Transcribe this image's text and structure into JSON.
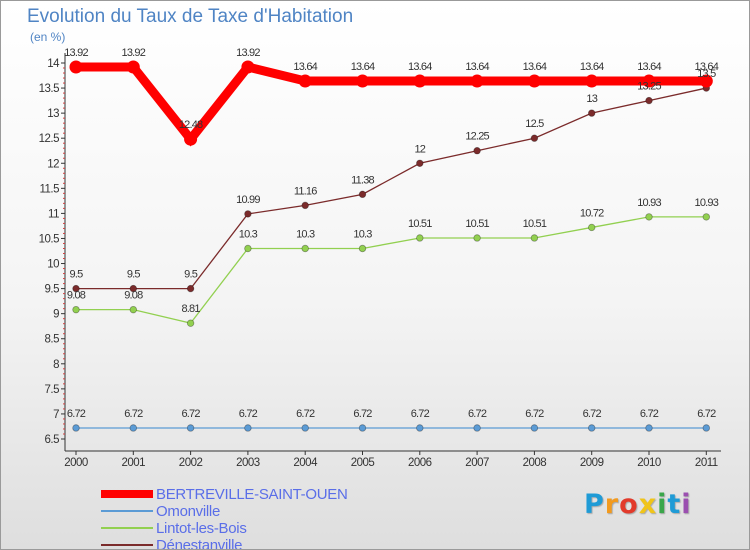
{
  "title": "Evolution du Taux de Taxe d'Habitation",
  "unit_label": "(en %)",
  "logo": {
    "text": "Proxiti",
    "colors": [
      "#1f9bd6",
      "#f29a1e",
      "#e23a2b",
      "#f0c419",
      "#3aa64a",
      "#1f9bd6",
      "#9b4fb0"
    ]
  },
  "chart_data": {
    "type": "line",
    "title": "Evolution du Taux de Taxe d'Habitation",
    "ylabel": "(en %)",
    "xlabel": "",
    "ylim": [
      6.5,
      14
    ],
    "yticks": [
      6.5,
      7,
      7.5,
      8,
      8.5,
      9,
      9.5,
      10,
      10.5,
      11,
      11.5,
      12,
      12.5,
      13,
      13.5,
      14
    ],
    "ytick_labels": [
      "6.5",
      "7",
      "7.5",
      "8",
      "8.5",
      "9",
      "9.5",
      "10",
      "10.5",
      "11",
      "11.5",
      "12",
      "12.5",
      "13",
      "13.5",
      "14"
    ],
    "grid": false,
    "legend_position": "bottom-left",
    "x": [
      "2000",
      "2001",
      "2002",
      "2003",
      "2004",
      "2005",
      "2006",
      "2007",
      "2008",
      "2009",
      "2010",
      "2011"
    ],
    "series": [
      {
        "name": "BERTREVILLE-SAINT-OUEN",
        "color": "#ff0000",
        "emphasis": "thick",
        "values": [
          13.92,
          13.92,
          12.48,
          13.92,
          13.64,
          13.64,
          13.64,
          13.64,
          13.64,
          13.64,
          13.64,
          13.64
        ],
        "labels": [
          "13.92",
          "13.92",
          "12.48",
          "13.92",
          "13.64",
          "13.64",
          "13.64",
          "13.64",
          "13.64",
          "13.64",
          "13.64",
          "13.64"
        ]
      },
      {
        "name": "Omonville",
        "color": "#5b9bd5",
        "emphasis": "normal",
        "values": [
          6.72,
          6.72,
          6.72,
          6.72,
          6.72,
          6.72,
          6.72,
          6.72,
          6.72,
          6.72,
          6.72,
          6.72
        ],
        "labels": [
          "6.72",
          "6.72",
          "6.72",
          "6.72",
          "6.72",
          "6.72",
          "6.72",
          "6.72",
          "6.72",
          "6.72",
          "6.72",
          "6.72"
        ]
      },
      {
        "name": "Lintot-les-Bois",
        "color": "#92d050",
        "emphasis": "normal",
        "values": [
          9.08,
          9.08,
          8.81,
          10.3,
          10.3,
          10.3,
          10.51,
          10.51,
          10.51,
          10.72,
          10.93,
          10.93
        ],
        "labels": [
          "9.08",
          "9.08",
          "8.81",
          "10.3",
          "10.3",
          "10.3",
          "10.51",
          "10.51",
          "10.51",
          "10.72",
          "10.93",
          "10.93"
        ]
      },
      {
        "name": "Dénestanville",
        "color": "#7b2b2b",
        "emphasis": "normal",
        "values": [
          9.5,
          9.5,
          9.5,
          10.99,
          11.16,
          11.38,
          12,
          12.25,
          12.5,
          13,
          13.25,
          13.5
        ],
        "labels": [
          "9.5",
          "9.5",
          "9.5",
          "10.99",
          "11.16",
          "11.38",
          "12",
          "12.25",
          "12.5",
          "13",
          "13.25",
          "13.5"
        ]
      }
    ]
  }
}
